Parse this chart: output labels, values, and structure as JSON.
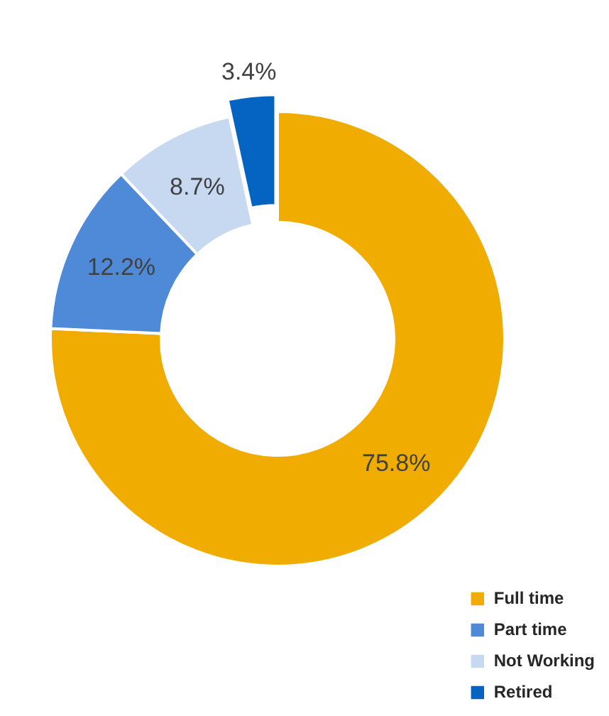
{
  "chart_data": {
    "type": "donut",
    "categories": [
      "Full time",
      "Part time",
      "Not Working",
      "Retired"
    ],
    "values": [
      75.8,
      12.2,
      8.7,
      3.4
    ],
    "colors": [
      "#f0ac00",
      "#4f8ad8",
      "#c6d9f0",
      "#0563c1"
    ],
    "value_labels": [
      "75.8%",
      "12.2%",
      "8.7%",
      "3.4%"
    ],
    "legend": "bottom right"
  }
}
